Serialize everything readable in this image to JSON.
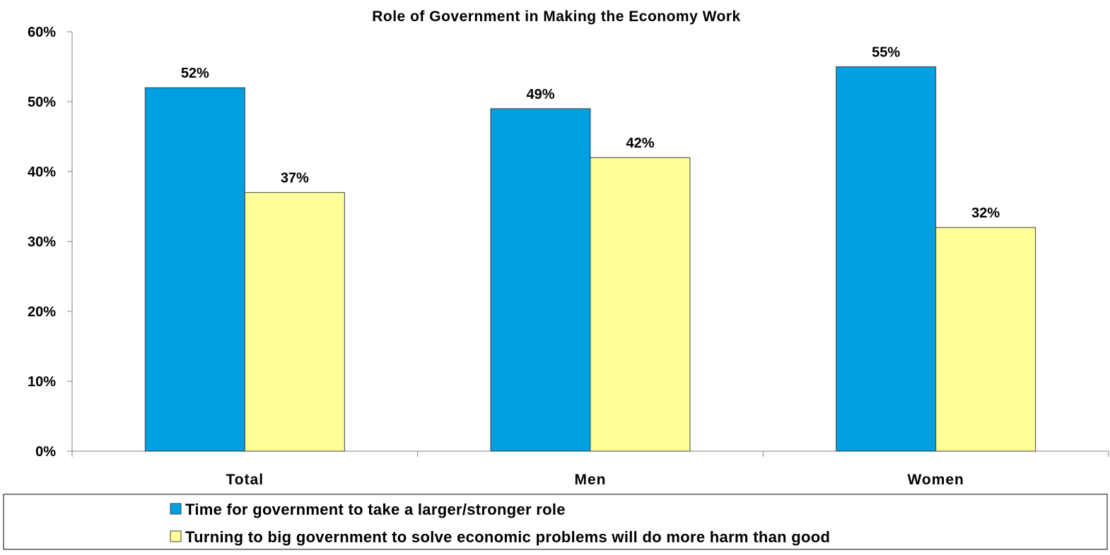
{
  "chart_data": {
    "type": "bar",
    "title": "Role of Government in Making the Economy Work",
    "xlabel": "",
    "ylabel": "",
    "categories": [
      "Total",
      "Men",
      "Women"
    ],
    "series": [
      {
        "name": "Time for government to take a larger/stronger role",
        "values": [
          52,
          49,
          55
        ],
        "color": "#009fdf"
      },
      {
        "name": "Turning to big government to solve economic problems will do more harm than good",
        "values": [
          37,
          42,
          32
        ],
        "color": "#ffff99"
      }
    ],
    "data_labels": [
      [
        "52%",
        "49%",
        "55%"
      ],
      [
        "37%",
        "42%",
        "32%"
      ]
    ],
    "ylim": [
      0,
      60
    ],
    "yticks": [
      0,
      10,
      20,
      30,
      40,
      50,
      60
    ],
    "ytick_labels": [
      "0%",
      "10%",
      "20%",
      "30%",
      "40%",
      "50%",
      "60%"
    ],
    "grid": false,
    "legend_position": "bottom"
  }
}
